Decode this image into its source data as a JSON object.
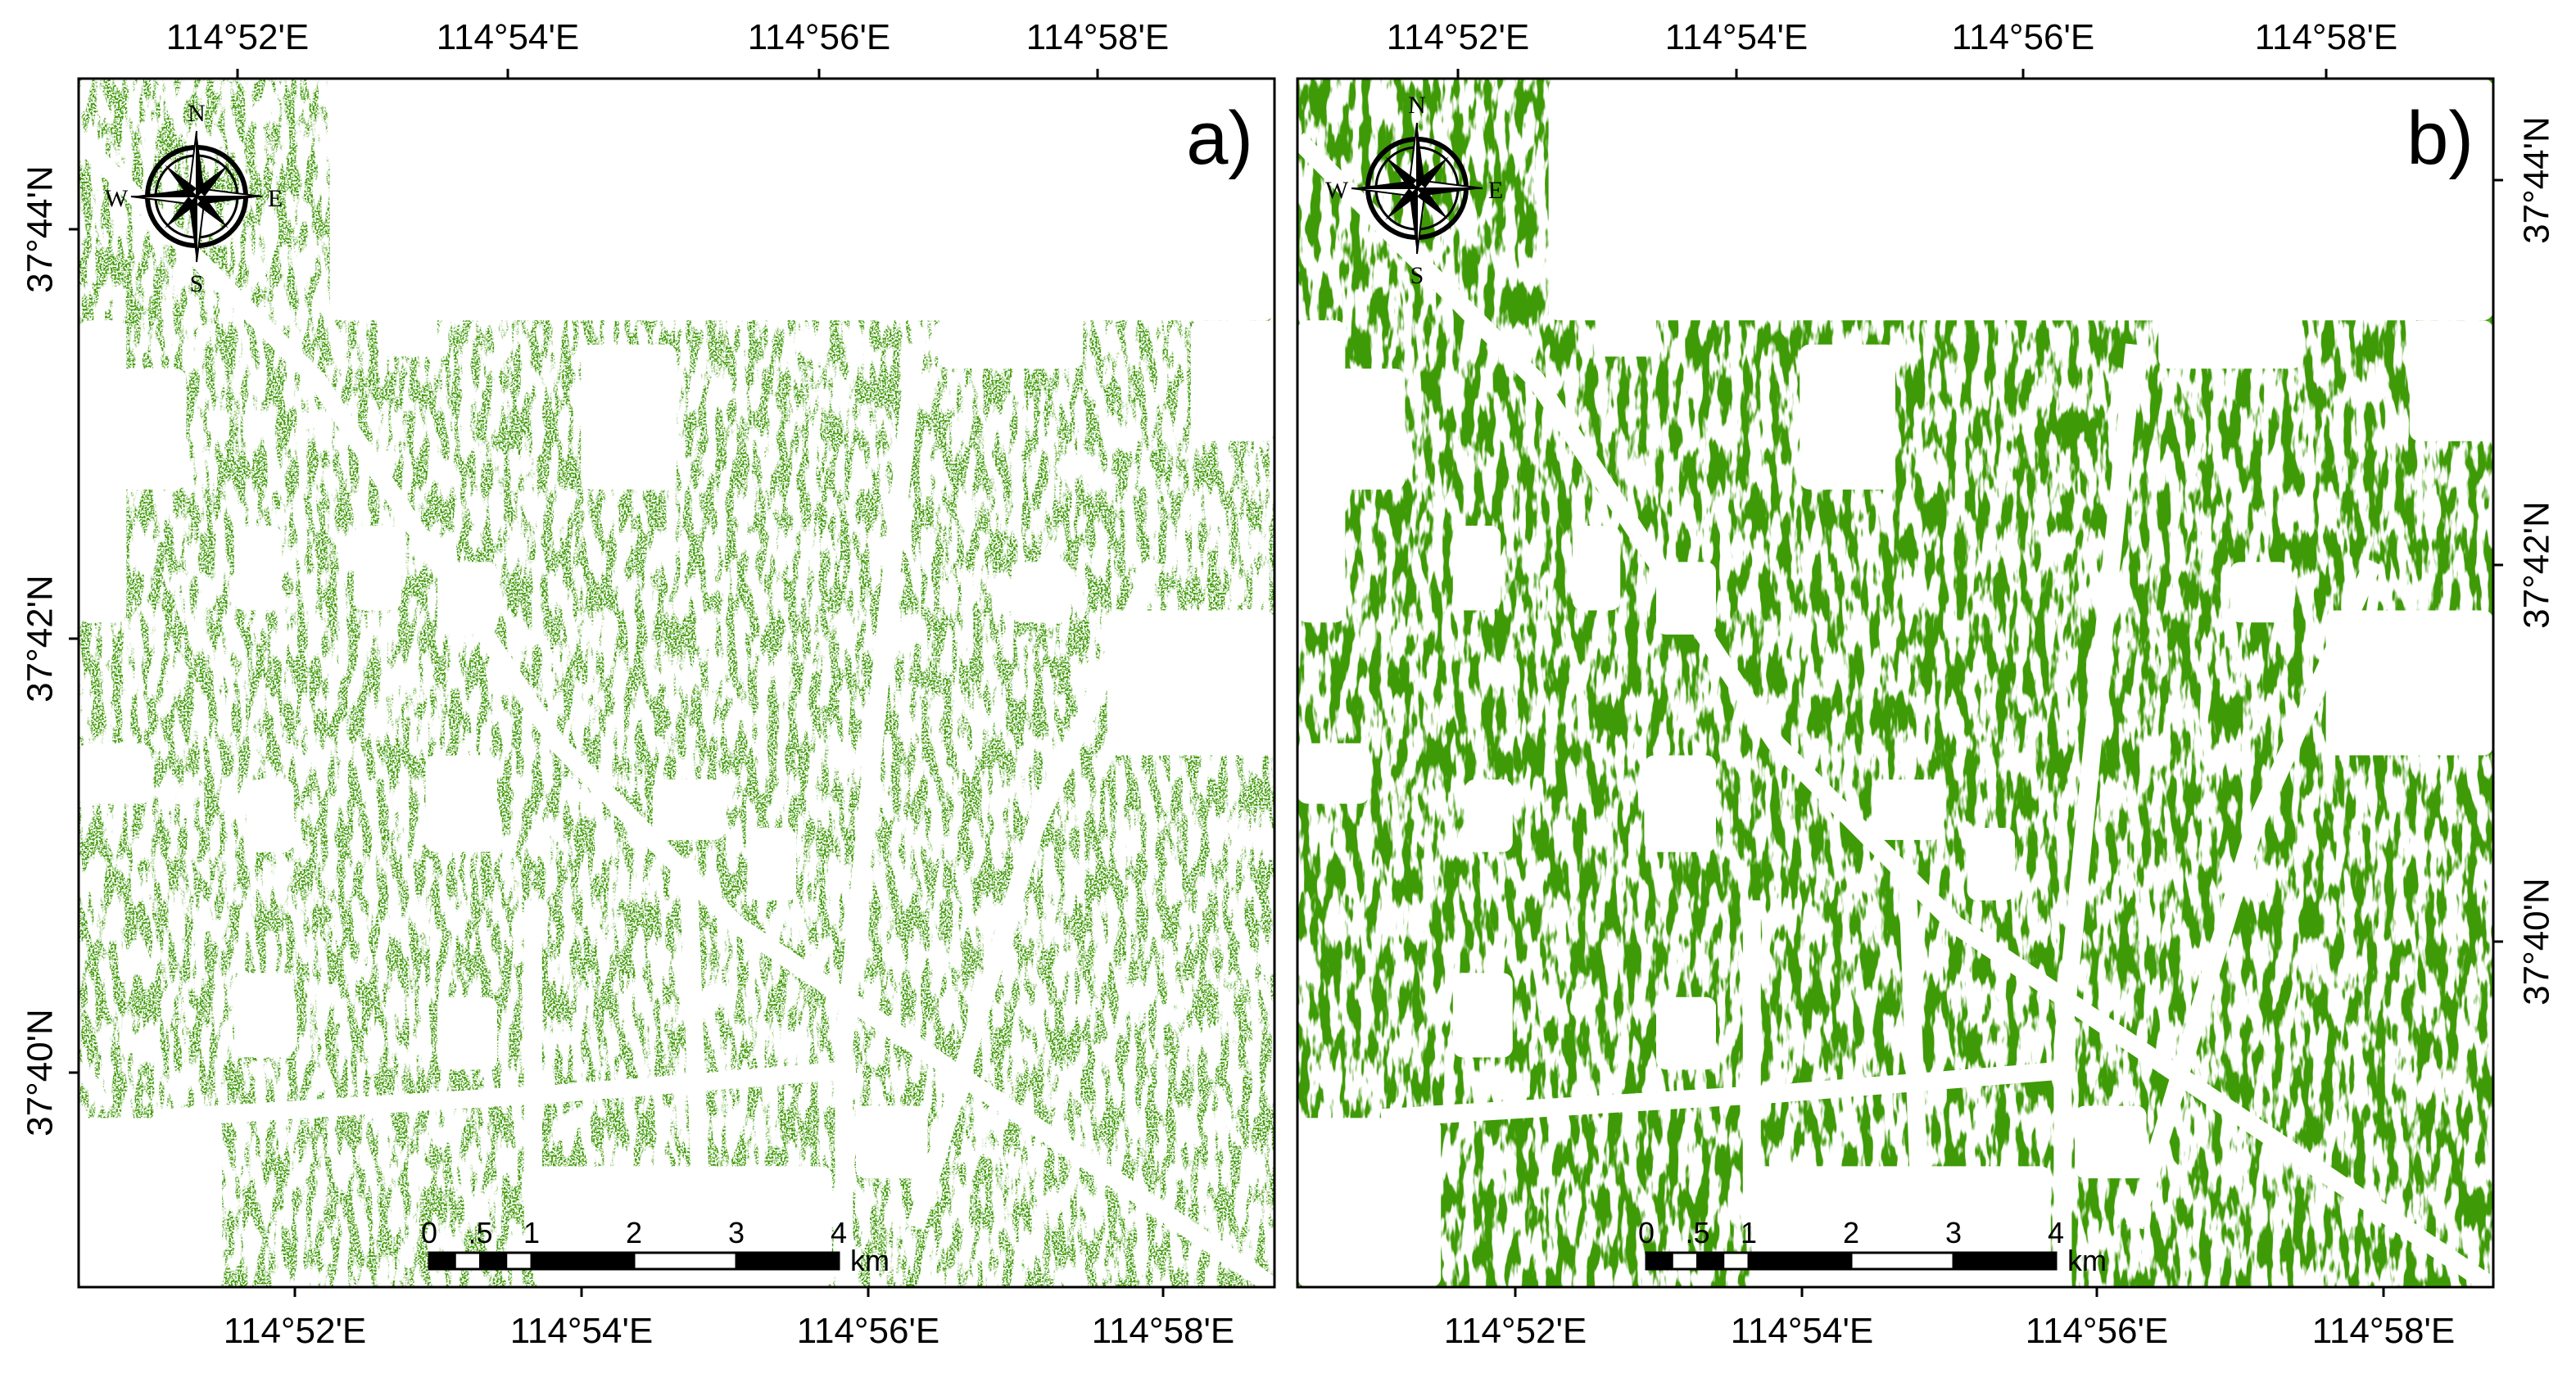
{
  "panels": [
    {
      "label": "a)",
      "top_ticks": [
        "114°52'E",
        "114°54'E",
        "114°56'E",
        "114°58'E"
      ],
      "bottom_ticks": [
        "114°52'E",
        "114°54'E",
        "114°56'E",
        "114°58'E"
      ],
      "side_ticks": [
        "37°44'N",
        "37°42'N",
        "37°40'N"
      ],
      "compass": {
        "n": "N",
        "e": "E",
        "s": "S",
        "w": "W"
      },
      "scale_bar": {
        "labels": [
          "0",
          ".5",
          "1",
          "2",
          "3",
          "4"
        ],
        "unit": "km"
      }
    },
    {
      "label": "b)",
      "top_ticks": [
        "114°52'E",
        "114°54'E",
        "114°56'E",
        "114°58'E"
      ],
      "bottom_ticks": [
        "114°52'E",
        "114°54'E",
        "114°56'E",
        "114°58'E"
      ],
      "side_ticks": [
        "37°44'N",
        "37°42'N",
        "37°40'N"
      ],
      "compass": {
        "n": "N",
        "e": "E",
        "s": "S",
        "w": "W"
      },
      "scale_bar": {
        "labels": [
          "0",
          ".5",
          "1",
          "2",
          "3",
          "4"
        ],
        "unit": "km"
      }
    }
  ]
}
